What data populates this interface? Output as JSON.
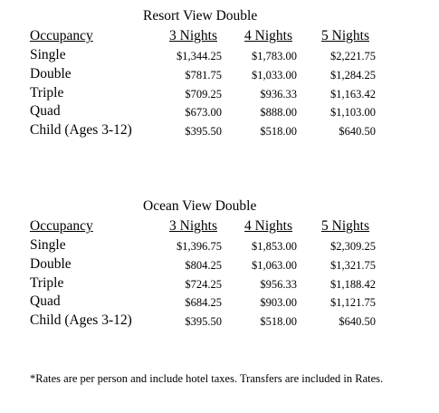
{
  "tables": [
    {
      "title": "Resort View Double",
      "headers": [
        "Occupancy",
        "3 Nights",
        "4 Nights",
        "5 Nights"
      ],
      "rows": [
        [
          "Single",
          "$1,344.25",
          "$1,783.00",
          "$2,221.75"
        ],
        [
          "Double",
          "$781.75",
          "$1,033.00",
          "$1,284.25"
        ],
        [
          "Triple",
          "$709.25",
          "$936.33",
          "$1,163.42"
        ],
        [
          "Quad",
          "$673.00",
          "$888.00",
          "$1,103.00"
        ],
        [
          "Child (Ages 3-12)",
          "$395.50",
          "$518.00",
          "$640.50"
        ]
      ]
    },
    {
      "title": "Ocean View Double",
      "headers": [
        "Occupancy",
        "3 Nights",
        "4 Nights",
        "5 Nights"
      ],
      "rows": [
        [
          "Single",
          "$1,396.75",
          "$1,853.00",
          "$2,309.25"
        ],
        [
          "Double",
          "$804.25",
          "$1,063.00",
          "$1,321.75"
        ],
        [
          "Triple",
          "$724.25",
          "$956.33",
          "$1,188.42"
        ],
        [
          "Quad",
          "$684.25",
          "$903.00",
          "$1,121.75"
        ],
        [
          "Child (Ages 3-12)",
          "$395.50",
          "$518.00",
          "$640.50"
        ]
      ]
    }
  ],
  "footnote": "*Rates are per person and include hotel taxes. Transfers are included in Rates."
}
